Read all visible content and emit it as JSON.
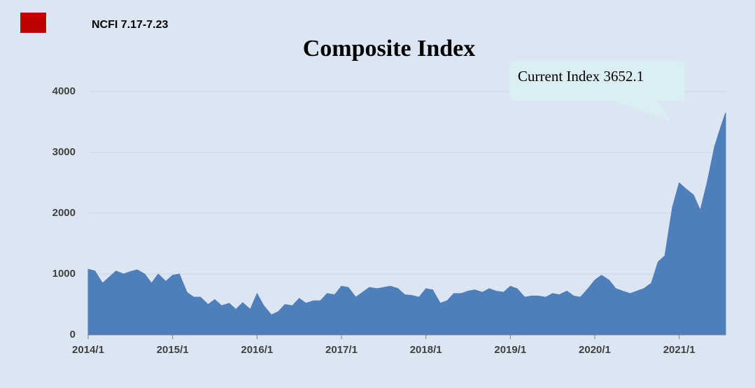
{
  "header": "NCFI 7.17-7.23",
  "chart_data": {
    "type": "area",
    "title": "Composite Index",
    "annotation": "Current Index 3652.1",
    "color": "#4f7fba",
    "grid": true,
    "xlim": [
      2014,
      2021.55
    ],
    "xticks": [
      {
        "value": 2014,
        "label": "2014/1"
      },
      {
        "value": 2015,
        "label": "2015/1"
      },
      {
        "value": 2016,
        "label": "2016/1"
      },
      {
        "value": 2017,
        "label": "2017/1"
      },
      {
        "value": 2018,
        "label": "2018/1"
      },
      {
        "value": 2019,
        "label": "2019/1"
      },
      {
        "value": 2020,
        "label": "2020/1"
      },
      {
        "value": 2021,
        "label": "2021/1"
      }
    ],
    "ylim": [
      0,
      4000
    ],
    "yticks": [
      0,
      1000,
      2000,
      3000,
      4000
    ],
    "x": [
      2014.0,
      2014.08,
      2014.17,
      2014.25,
      2014.33,
      2014.42,
      2014.5,
      2014.58,
      2014.67,
      2014.75,
      2014.83,
      2014.92,
      2015.0,
      2015.08,
      2015.17,
      2015.25,
      2015.33,
      2015.42,
      2015.5,
      2015.58,
      2015.67,
      2015.75,
      2015.83,
      2015.92,
      2016.0,
      2016.08,
      2016.17,
      2016.25,
      2016.33,
      2016.42,
      2016.5,
      2016.58,
      2016.67,
      2016.75,
      2016.83,
      2016.92,
      2017.0,
      2017.08,
      2017.17,
      2017.25,
      2017.33,
      2017.42,
      2017.5,
      2017.58,
      2017.67,
      2017.75,
      2017.83,
      2017.92,
      2018.0,
      2018.08,
      2018.17,
      2018.25,
      2018.33,
      2018.42,
      2018.5,
      2018.58,
      2018.67,
      2018.75,
      2018.83,
      2018.92,
      2019.0,
      2019.08,
      2019.17,
      2019.25,
      2019.33,
      2019.42,
      2019.5,
      2019.58,
      2019.67,
      2019.75,
      2019.83,
      2019.92,
      2020.0,
      2020.08,
      2020.17,
      2020.25,
      2020.33,
      2020.42,
      2020.5,
      2020.58,
      2020.67,
      2020.75,
      2020.83,
      2020.92,
      2021.0,
      2021.08,
      2021.17,
      2021.25,
      2021.33,
      2021.42,
      2021.5,
      2021.55
    ],
    "values": [
      1080,
      1050,
      850,
      950,
      1050,
      1000,
      1040,
      1070,
      1000,
      850,
      1000,
      880,
      980,
      1000,
      700,
      620,
      620,
      500,
      580,
      480,
      520,
      420,
      530,
      420,
      680,
      480,
      330,
      380,
      500,
      480,
      600,
      520,
      560,
      560,
      680,
      660,
      800,
      780,
      620,
      700,
      780,
      760,
      780,
      800,
      760,
      660,
      650,
      620,
      760,
      740,
      520,
      560,
      680,
      680,
      720,
      740,
      700,
      760,
      720,
      700,
      800,
      760,
      620,
      640,
      640,
      620,
      680,
      660,
      720,
      640,
      620,
      760,
      900,
      980,
      900,
      760,
      720,
      680,
      720,
      760,
      850,
      1200,
      1300,
      2100,
      2500,
      2400,
      2300,
      2050,
      2500,
      3100,
      3450,
      3652.1
    ]
  }
}
